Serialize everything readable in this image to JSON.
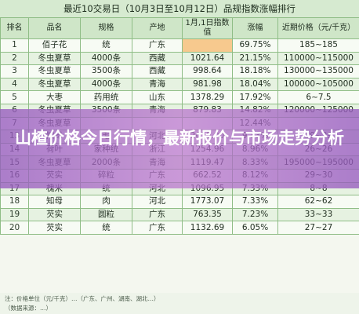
{
  "title": "最近10交易日（10月3日至10月12日）品规指数涨幅排行",
  "headers": [
    "排名",
    "品名",
    "规格",
    "产地",
    "1月,1日指数值",
    "涨幅",
    "近期价格（元/千克）"
  ],
  "rows": [
    {
      "rank": "1",
      "name": "佰子花",
      "spec": "统",
      "origin": "广东",
      "index": "",
      "rise": "69.75%",
      "price": "185~185"
    },
    {
      "rank": "2",
      "name": "冬虫夏草",
      "spec": "4000条",
      "origin": "西藏",
      "index": "1021.64",
      "rise": "21.15%",
      "price": "110000~115000"
    },
    {
      "rank": "3",
      "name": "冬虫夏草",
      "spec": "3500条",
      "origin": "西藏",
      "index": "998.64",
      "rise": "18.18%",
      "price": "130000~135000"
    },
    {
      "rank": "4",
      "name": "冬虫夏草",
      "spec": "4000条",
      "origin": "青海",
      "index": "981.98",
      "rise": "18.04%",
      "price": "100000~105000"
    },
    {
      "rank": "5",
      "name": "大枣",
      "spec": "药用统",
      "origin": "山东",
      "index": "1378.29",
      "rise": "17.92%",
      "price": "6~7.5"
    },
    {
      "rank": "6",
      "name": "冬虫夏草",
      "spec": "3500条",
      "origin": "青海",
      "index": "879.83",
      "rise": "14.82%",
      "price": "120000~125000"
    },
    {
      "rank": "7",
      "name": "冬虫夏草",
      "spec": "",
      "origin": "",
      "index": "",
      "rise": "12.44%",
      "price": ""
    },
    {
      "rank": "13",
      "name": "知母",
      "spec": "毛",
      "origin": "河北",
      "index": "2610.00",
      "rise": "9.33%",
      "price": "29~29"
    },
    {
      "rank": "14",
      "name": "荷叶",
      "spec": "家种统",
      "origin": "浙江",
      "index": "1254.96",
      "rise": "8.96%",
      "price": "26~26"
    },
    {
      "rank": "15",
      "name": "冬虫夏草",
      "spec": "2000条",
      "origin": "青海",
      "index": "1119.47",
      "rise": "8.33%",
      "price": "195000~195000"
    },
    {
      "rank": "16",
      "name": "芡实",
      "spec": "碎粒",
      "origin": "广东",
      "index": "662.52",
      "rise": "8.12%",
      "price": "29~30"
    },
    {
      "rank": "17",
      "name": "槐米",
      "spec": "统",
      "origin": "河北",
      "index": "1096.95",
      "rise": "7.33%",
      "price": "8~8"
    },
    {
      "rank": "18",
      "name": "知母",
      "spec": "肉",
      "origin": "河北",
      "index": "1773.07",
      "rise": "7.33%",
      "price": "62~62"
    },
    {
      "rank": "19",
      "name": "芡实",
      "spec": "圆粒",
      "origin": "广东",
      "index": "763.35",
      "rise": "7.23%",
      "price": "33~33"
    },
    {
      "rank": "20",
      "name": "芡实",
      "spec": "统",
      "origin": "广东",
      "index": "1132.69",
      "rise": "6.05%",
      "price": "27~27"
    }
  ],
  "footnote_line1": "注：价格单位（元/千克）…（广东、广州、湖南、湖北…）",
  "footnote_line2": "（数据来源：…）",
  "banner_text": "山楂价格今日行情，最新报价与市场走势分析"
}
